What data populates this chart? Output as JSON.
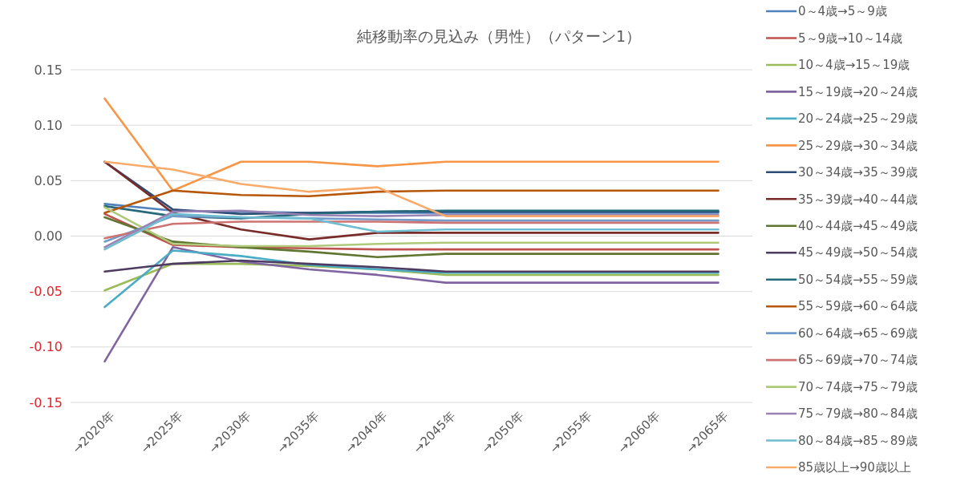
{
  "chart_data": {
    "type": "line",
    "title": "純移動率の見込み（男性）（パターン1）",
    "categories": [
      "→2020年",
      "→2025年",
      "→2030年",
      "→2035年",
      "→2040年",
      "→2045年",
      "→2050年",
      "→2055年",
      "→2060年",
      "→2065年"
    ],
    "ylim": [
      -0.15,
      0.15
    ],
    "yticks": [
      -0.15,
      {
        "value": -0.1,
        "label": "-0.10"
      },
      -0.05,
      {
        "value": 0,
        "label": "0.00"
      },
      0.05,
      {
        "value": 0.1,
        "label": "0.10"
      },
      0.15
    ],
    "grid": "y",
    "legend": "right",
    "series": [
      {
        "name": "0～4歳→5～9歳",
        "color": "#4f81bd",
        "values": [
          0.029,
          0.023,
          0.022,
          0.021,
          0.021,
          0.021,
          0.021,
          0.021,
          0.021,
          0.021
        ]
      },
      {
        "name": "5～9歳→10～14歳",
        "color": "#c0504d",
        "values": [
          0.02,
          -0.008,
          -0.01,
          -0.011,
          -0.012,
          -0.012,
          -0.012,
          -0.012,
          -0.012,
          -0.012
        ]
      },
      {
        "name": "10～4歳→15～19歳",
        "color": "#9bbb59",
        "values": [
          -0.049,
          -0.025,
          -0.025,
          -0.027,
          -0.03,
          -0.035,
          -0.035,
          -0.035,
          -0.035,
          -0.035
        ]
      },
      {
        "name": "15～19歳→20～24歳",
        "color": "#8064a2",
        "values": [
          -0.113,
          -0.01,
          -0.023,
          -0.03,
          -0.035,
          -0.042,
          -0.042,
          -0.042,
          -0.042,
          -0.042
        ]
      },
      {
        "name": "20～24歳→25～29歳",
        "color": "#4bacc6",
        "values": [
          -0.064,
          -0.013,
          -0.018,
          -0.026,
          -0.03,
          -0.033,
          -0.033,
          -0.033,
          -0.033,
          -0.033
        ]
      },
      {
        "name": "25～29歳→30～34歳",
        "color": "#f79646",
        "values": [
          0.124,
          0.041,
          0.067,
          0.067,
          0.063,
          0.067,
          0.067,
          0.067,
          0.067,
          0.067
        ]
      },
      {
        "name": "30～34歳→35～39歳",
        "color": "#2c4d75",
        "values": [
          0.067,
          0.024,
          0.02,
          0.021,
          0.022,
          0.022,
          0.022,
          0.022,
          0.022,
          0.022
        ]
      },
      {
        "name": "35～39歳→40～44歳",
        "color": "#772c2a",
        "values": [
          0.067,
          0.021,
          0.006,
          -0.003,
          0.003,
          0.003,
          0.003,
          0.003,
          0.003,
          0.003
        ]
      },
      {
        "name": "40～44歳→45～49歳",
        "color": "#5f7530",
        "values": [
          0.017,
          -0.005,
          -0.01,
          -0.014,
          -0.019,
          -0.016,
          -0.016,
          -0.016,
          -0.016,
          -0.016
        ]
      },
      {
        "name": "45～49歳→50～54歳",
        "color": "#4d3b62",
        "values": [
          -0.032,
          -0.025,
          -0.022,
          -0.025,
          -0.028,
          -0.032,
          -0.032,
          -0.032,
          -0.032,
          -0.032
        ]
      },
      {
        "name": "50～54歳→55～59歳",
        "color": "#276a7c",
        "values": [
          0.027,
          0.018,
          0.016,
          0.02,
          0.022,
          0.023,
          0.023,
          0.023,
          0.023,
          0.023
        ]
      },
      {
        "name": "55～59歳→60～64歳",
        "color": "#b65708",
        "values": [
          0.021,
          0.041,
          0.037,
          0.036,
          0.04,
          0.041,
          0.041,
          0.041,
          0.041,
          0.041
        ]
      },
      {
        "name": "60～64歳→65～69歳",
        "color": "#729aca",
        "values": [
          -0.005,
          0.018,
          0.017,
          0.016,
          0.015,
          0.014,
          0.014,
          0.014,
          0.014,
          0.014
        ]
      },
      {
        "name": "65～69歳→70～74歳",
        "color": "#cd7371",
        "values": [
          -0.002,
          0.011,
          0.013,
          0.013,
          0.013,
          0.012,
          0.012,
          0.012,
          0.012,
          0.012
        ]
      },
      {
        "name": "70～74歳→75～79歳",
        "color": "#afc97a",
        "values": [
          0.026,
          -0.007,
          -0.009,
          -0.009,
          -0.007,
          -0.006,
          -0.006,
          -0.006,
          -0.006,
          -0.006
        ]
      },
      {
        "name": "75～79歳→80～84歳",
        "color": "#9983b5",
        "values": [
          -0.01,
          0.022,
          0.023,
          0.019,
          0.018,
          0.019,
          0.019,
          0.019,
          0.019,
          0.019
        ]
      },
      {
        "name": "80～84歳→85～89歳",
        "color": "#6fbdd1",
        "values": [
          -0.012,
          0.02,
          0.017,
          0.016,
          0.004,
          0.006,
          0.006,
          0.006,
          0.006,
          0.006
        ]
      },
      {
        "name": "85歳以上→90歳以上",
        "color": "#f9ab6b",
        "values": [
          0.067,
          0.06,
          0.047,
          0.04,
          0.044,
          0.018,
          0.018,
          0.018,
          0.018,
          0.018
        ]
      }
    ]
  }
}
